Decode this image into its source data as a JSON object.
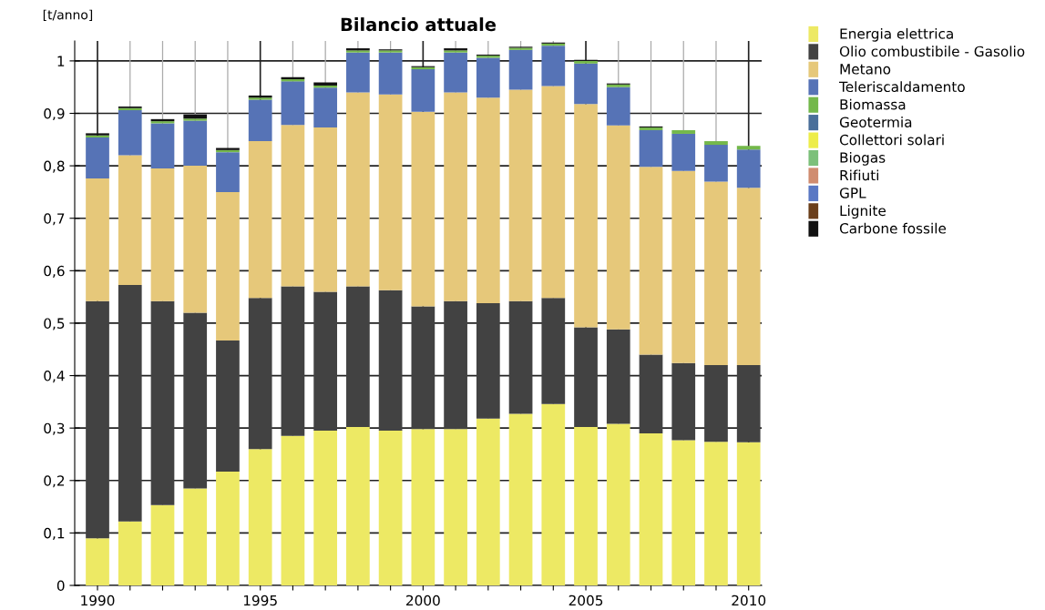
{
  "chart_data": {
    "type": "bar",
    "stacked": true,
    "title": "Bilancio attuale",
    "ylabel": "[t/anno]",
    "x": [
      1990,
      1991,
      1992,
      1993,
      1994,
      1995,
      1996,
      1997,
      1998,
      1999,
      2000,
      2001,
      2002,
      2003,
      2004,
      2005,
      2006,
      2007,
      2008,
      2009,
      2010
    ],
    "series": [
      {
        "name": "Energia elettrica",
        "color": "#ede964",
        "values": [
          0.09,
          0.122,
          0.153,
          0.185,
          0.217,
          0.26,
          0.285,
          0.295,
          0.302,
          0.295,
          0.298,
          0.298,
          0.318,
          0.327,
          0.346,
          0.302,
          0.308,
          0.29,
          0.277,
          0.274,
          0.273
        ]
      },
      {
        "name": "Olio combustibile - Gasolio",
        "color": "#424242",
        "values": [
          0.452,
          0.451,
          0.389,
          0.335,
          0.25,
          0.288,
          0.285,
          0.265,
          0.268,
          0.268,
          0.234,
          0.244,
          0.22,
          0.215,
          0.202,
          0.19,
          0.18,
          0.15,
          0.147,
          0.146,
          0.147
        ]
      },
      {
        "name": "Metano",
        "color": "#e6c87a",
        "values": [
          0.234,
          0.247,
          0.253,
          0.28,
          0.283,
          0.299,
          0.308,
          0.313,
          0.37,
          0.373,
          0.371,
          0.398,
          0.392,
          0.403,
          0.404,
          0.426,
          0.389,
          0.358,
          0.366,
          0.35,
          0.338
        ]
      },
      {
        "name": "Teleriscaldamento",
        "color": "#5673b6",
        "values": [
          0.078,
          0.086,
          0.086,
          0.086,
          0.076,
          0.079,
          0.083,
          0.076,
          0.076,
          0.08,
          0.081,
          0.076,
          0.076,
          0.076,
          0.077,
          0.077,
          0.073,
          0.07,
          0.071,
          0.07,
          0.073
        ]
      },
      {
        "name": "Biomassa",
        "color": "#74b84b",
        "values": [
          0.004,
          0.004,
          0.004,
          0.004,
          0.004,
          0.004,
          0.004,
          0.004,
          0.004,
          0.004,
          0.004,
          0.004,
          0.004,
          0.004,
          0.004,
          0.005,
          0.005,
          0.005,
          0.007,
          0.007,
          0.007
        ]
      },
      {
        "name": "Geotermia",
        "color": "#4a6f9a",
        "values": [
          0,
          0,
          0,
          0,
          0,
          0,
          0,
          0,
          0,
          0,
          0,
          0,
          0,
          0,
          0,
          0,
          0,
          0,
          0,
          0,
          0
        ]
      },
      {
        "name": "Collettori solari",
        "color": "#eded4a",
        "values": [
          0,
          0,
          0,
          0,
          0,
          0,
          0,
          0,
          0,
          0,
          0,
          0,
          0,
          0,
          0,
          0,
          0,
          0,
          0,
          0,
          0
        ]
      },
      {
        "name": "Biogas",
        "color": "#7cc07a",
        "values": [
          0,
          0,
          0,
          0,
          0,
          0,
          0,
          0,
          0,
          0,
          0,
          0,
          0,
          0,
          0,
          0,
          0,
          0,
          0,
          0,
          0
        ]
      },
      {
        "name": "Rifiuti",
        "color": "#d08c70",
        "values": [
          0,
          0,
          0,
          0,
          0,
          0,
          0,
          0,
          0,
          0,
          0,
          0,
          0,
          0,
          0,
          0,
          0,
          0,
          0,
          0,
          0
        ]
      },
      {
        "name": "GPL",
        "color": "#5a78c4",
        "values": [
          0,
          0,
          0,
          0,
          0,
          0,
          0,
          0,
          0,
          0,
          0,
          0,
          0,
          0,
          0,
          0,
          0,
          0,
          0,
          0,
          0
        ]
      },
      {
        "name": "Lignite",
        "color": "#6b3f1b",
        "values": [
          0,
          0,
          0,
          0,
          0,
          0,
          0,
          0,
          0,
          0,
          0,
          0,
          0,
          0,
          0,
          0,
          0,
          0,
          0,
          0,
          0
        ]
      },
      {
        "name": "Carbone fossile",
        "color": "#111111",
        "values": [
          0.004,
          0.003,
          0.004,
          0.008,
          0.004,
          0.004,
          0.004,
          0.006,
          0.004,
          0.002,
          0.002,
          0.004,
          0.002,
          0.002,
          0.002,
          0.002,
          0.002,
          0.002,
          0,
          0,
          0
        ]
      }
    ],
    "xlim": [
      1989.3,
      2010.4
    ],
    "xticks": [
      1990,
      {
        "value": 1991,
        "label": null
      },
      {
        "value": 1992,
        "label": null
      },
      {
        "value": 1993,
        "label": null
      },
      {
        "value": 1994,
        "label": null
      },
      1995,
      {
        "value": 1996,
        "label": null
      },
      {
        "value": 1997,
        "label": null
      },
      {
        "value": 1998,
        "label": null
      },
      {
        "value": 1999,
        "label": null
      },
      2000,
      {
        "value": 2001,
        "label": null
      },
      {
        "value": 2002,
        "label": null
      },
      {
        "value": 2003,
        "label": null
      },
      {
        "value": 2004,
        "label": null
      },
      2005,
      {
        "value": 2006,
        "label": null
      },
      {
        "value": 2007,
        "label": null
      },
      {
        "value": 2008,
        "label": null
      },
      {
        "value": 2009,
        "label": null
      },
      2010
    ],
    "ylim": [
      0,
      1.038
    ],
    "yticks": [
      0,
      {
        "value": 0.1,
        "label": "0,1"
      },
      {
        "value": 0.2,
        "label": "0,2"
      },
      {
        "value": 0.3,
        "label": "0,3"
      },
      {
        "value": 0.4,
        "label": "0,4"
      },
      {
        "value": 0.5,
        "label": "0,5"
      },
      {
        "value": 0.6,
        "label": "0,6"
      },
      {
        "value": 0.7,
        "label": "0,7"
      },
      {
        "value": 0.8,
        "label": "0,8"
      },
      {
        "value": 0.9,
        "label": "0,9"
      },
      1
    ],
    "grid": true,
    "legend": "top right"
  }
}
